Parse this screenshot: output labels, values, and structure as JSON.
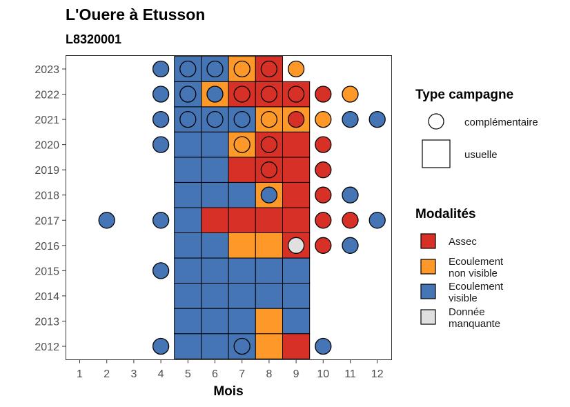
{
  "chart_data": {
    "type": "heatmap",
    "title": "L'Ouere à Etusson",
    "subtitle": "L8320001",
    "xlabel": "Mois",
    "ylabel": "",
    "x_ticks": [
      "1",
      "2",
      "3",
      "4",
      "5",
      "6",
      "7",
      "8",
      "9",
      "10",
      "11",
      "12"
    ],
    "y_ticks": [
      "2012",
      "2013",
      "2014",
      "2015",
      "2016",
      "2017",
      "2018",
      "2019",
      "2020",
      "2021",
      "2022",
      "2023"
    ],
    "colors": {
      "Assec": "#d73027",
      "Ecoulement non visible": "#fe9929",
      "Ecoulement visible": "#4575b4",
      "Donnée manquante": "#e0e0e0"
    },
    "legend_type": {
      "title": "Type campagne",
      "items": [
        {
          "label": "complémentaire",
          "shape": "circle"
        },
        {
          "label": "usuelle",
          "shape": "square"
        }
      ]
    },
    "legend_modalites": {
      "title": "Modalités",
      "items": [
        {
          "key": "Assec",
          "lines": [
            "Assec"
          ]
        },
        {
          "key": "Ecoulement non visible",
          "lines": [
            "Ecoulement",
            "non visible"
          ]
        },
        {
          "key": "Ecoulement visible",
          "lines": [
            "Ecoulement",
            "visible"
          ]
        },
        {
          "key": "Donnée manquante",
          "lines": [
            "Donnée",
            "manquante"
          ]
        }
      ]
    },
    "usuelle": [
      {
        "year": 2012,
        "month": 5,
        "value": "Ecoulement visible"
      },
      {
        "year": 2012,
        "month": 6,
        "value": "Ecoulement visible"
      },
      {
        "year": 2012,
        "month": 7,
        "value": "Ecoulement visible"
      },
      {
        "year": 2012,
        "month": 8,
        "value": "Ecoulement non visible"
      },
      {
        "year": 2012,
        "month": 9,
        "value": "Assec"
      },
      {
        "year": 2013,
        "month": 5,
        "value": "Ecoulement visible"
      },
      {
        "year": 2013,
        "month": 6,
        "value": "Ecoulement visible"
      },
      {
        "year": 2013,
        "month": 7,
        "value": "Ecoulement visible"
      },
      {
        "year": 2013,
        "month": 8,
        "value": "Ecoulement non visible"
      },
      {
        "year": 2013,
        "month": 9,
        "value": "Ecoulement visible"
      },
      {
        "year": 2014,
        "month": 5,
        "value": "Ecoulement visible"
      },
      {
        "year": 2014,
        "month": 6,
        "value": "Ecoulement visible"
      },
      {
        "year": 2014,
        "month": 7,
        "value": "Ecoulement visible"
      },
      {
        "year": 2014,
        "month": 8,
        "value": "Ecoulement visible"
      },
      {
        "year": 2014,
        "month": 9,
        "value": "Ecoulement visible"
      },
      {
        "year": 2015,
        "month": 5,
        "value": "Ecoulement visible"
      },
      {
        "year": 2015,
        "month": 6,
        "value": "Ecoulement visible"
      },
      {
        "year": 2015,
        "month": 7,
        "value": "Ecoulement visible"
      },
      {
        "year": 2015,
        "month": 8,
        "value": "Ecoulement visible"
      },
      {
        "year": 2015,
        "month": 9,
        "value": "Ecoulement visible"
      },
      {
        "year": 2016,
        "month": 5,
        "value": "Ecoulement visible"
      },
      {
        "year": 2016,
        "month": 6,
        "value": "Ecoulement visible"
      },
      {
        "year": 2016,
        "month": 7,
        "value": "Ecoulement non visible"
      },
      {
        "year": 2016,
        "month": 8,
        "value": "Ecoulement non visible"
      },
      {
        "year": 2016,
        "month": 9,
        "value": "Assec"
      },
      {
        "year": 2017,
        "month": 5,
        "value": "Ecoulement visible"
      },
      {
        "year": 2017,
        "month": 6,
        "value": "Assec"
      },
      {
        "year": 2017,
        "month": 7,
        "value": "Assec"
      },
      {
        "year": 2017,
        "month": 8,
        "value": "Assec"
      },
      {
        "year": 2017,
        "month": 9,
        "value": "Assec"
      },
      {
        "year": 2018,
        "month": 5,
        "value": "Ecoulement visible"
      },
      {
        "year": 2018,
        "month": 6,
        "value": "Ecoulement visible"
      },
      {
        "year": 2018,
        "month": 7,
        "value": "Ecoulement visible"
      },
      {
        "year": 2018,
        "month": 8,
        "value": "Ecoulement non visible"
      },
      {
        "year": 2018,
        "month": 9,
        "value": "Assec"
      },
      {
        "year": 2019,
        "month": 5,
        "value": "Ecoulement visible"
      },
      {
        "year": 2019,
        "month": 6,
        "value": "Ecoulement visible"
      },
      {
        "year": 2019,
        "month": 7,
        "value": "Assec"
      },
      {
        "year": 2019,
        "month": 8,
        "value": "Assec"
      },
      {
        "year": 2019,
        "month": 9,
        "value": "Assec"
      },
      {
        "year": 2020,
        "month": 5,
        "value": "Ecoulement visible"
      },
      {
        "year": 2020,
        "month": 6,
        "value": "Ecoulement visible"
      },
      {
        "year": 2020,
        "month": 7,
        "value": "Ecoulement non visible"
      },
      {
        "year": 2020,
        "month": 8,
        "value": "Assec"
      },
      {
        "year": 2020,
        "month": 9,
        "value": "Assec"
      },
      {
        "year": 2021,
        "month": 5,
        "value": "Ecoulement visible"
      },
      {
        "year": 2021,
        "month": 6,
        "value": "Ecoulement visible"
      },
      {
        "year": 2021,
        "month": 7,
        "value": "Ecoulement visible"
      },
      {
        "year": 2021,
        "month": 8,
        "value": "Ecoulement non visible"
      },
      {
        "year": 2021,
        "month": 9,
        "value": "Ecoulement non visible"
      },
      {
        "year": 2022,
        "month": 5,
        "value": "Ecoulement visible"
      },
      {
        "year": 2022,
        "month": 6,
        "value": "Ecoulement non visible"
      },
      {
        "year": 2022,
        "month": 7,
        "value": "Assec"
      },
      {
        "year": 2022,
        "month": 8,
        "value": "Assec"
      },
      {
        "year": 2022,
        "month": 9,
        "value": "Assec"
      },
      {
        "year": 2023,
        "month": 5,
        "value": "Ecoulement visible"
      },
      {
        "year": 2023,
        "month": 6,
        "value": "Ecoulement visible"
      },
      {
        "year": 2023,
        "month": 7,
        "value": "Ecoulement non visible"
      },
      {
        "year": 2023,
        "month": 8,
        "value": "Assec"
      }
    ],
    "complementaire": [
      {
        "year": 2012,
        "month": 4,
        "value": "Ecoulement visible"
      },
      {
        "year": 2012,
        "month": 7,
        "value": "Ecoulement visible"
      },
      {
        "year": 2012,
        "month": 10,
        "value": "Ecoulement visible"
      },
      {
        "year": 2015,
        "month": 4,
        "value": "Ecoulement visible"
      },
      {
        "year": 2016,
        "month": 9,
        "value": "Donnée manquante"
      },
      {
        "year": 2016,
        "month": 10,
        "value": "Assec"
      },
      {
        "year": 2016,
        "month": 11,
        "value": "Ecoulement visible"
      },
      {
        "year": 2017,
        "month": 2,
        "value": "Ecoulement visible"
      },
      {
        "year": 2017,
        "month": 4,
        "value": "Ecoulement visible"
      },
      {
        "year": 2017,
        "month": 10,
        "value": "Assec"
      },
      {
        "year": 2017,
        "month": 11,
        "value": "Assec"
      },
      {
        "year": 2017,
        "month": 12,
        "value": "Ecoulement visible"
      },
      {
        "year": 2018,
        "month": 8,
        "value": "Ecoulement visible"
      },
      {
        "year": 2018,
        "month": 10,
        "value": "Assec"
      },
      {
        "year": 2018,
        "month": 11,
        "value": "Ecoulement visible"
      },
      {
        "year": 2019,
        "month": 8,
        "value": "Assec"
      },
      {
        "year": 2019,
        "month": 10,
        "value": "Assec"
      },
      {
        "year": 2020,
        "month": 4,
        "value": "Ecoulement visible"
      },
      {
        "year": 2020,
        "month": 7,
        "value": "Ecoulement non visible"
      },
      {
        "year": 2020,
        "month": 8,
        "value": "Assec"
      },
      {
        "year": 2020,
        "month": 10,
        "value": "Assec"
      },
      {
        "year": 2021,
        "month": 4,
        "value": "Ecoulement visible"
      },
      {
        "year": 2021,
        "month": 5,
        "value": "Ecoulement visible"
      },
      {
        "year": 2021,
        "month": 6,
        "value": "Ecoulement visible"
      },
      {
        "year": 2021,
        "month": 7,
        "value": "Ecoulement visible"
      },
      {
        "year": 2021,
        "month": 8,
        "value": "Ecoulement non visible"
      },
      {
        "year": 2021,
        "month": 9,
        "value": "Assec"
      },
      {
        "year": 2021,
        "month": 10,
        "value": "Ecoulement non visible"
      },
      {
        "year": 2021,
        "month": 11,
        "value": "Ecoulement visible"
      },
      {
        "year": 2021,
        "month": 12,
        "value": "Ecoulement visible"
      },
      {
        "year": 2022,
        "month": 4,
        "value": "Ecoulement visible"
      },
      {
        "year": 2022,
        "month": 5,
        "value": "Ecoulement visible"
      },
      {
        "year": 2022,
        "month": 6,
        "value": "Ecoulement visible"
      },
      {
        "year": 2022,
        "month": 7,
        "value": "Assec"
      },
      {
        "year": 2022,
        "month": 8,
        "value": "Assec"
      },
      {
        "year": 2022,
        "month": 9,
        "value": "Assec"
      },
      {
        "year": 2022,
        "month": 10,
        "value": "Assec"
      },
      {
        "year": 2022,
        "month": 11,
        "value": "Ecoulement non visible"
      },
      {
        "year": 2023,
        "month": 4,
        "value": "Ecoulement visible"
      },
      {
        "year": 2023,
        "month": 5,
        "value": "Ecoulement visible"
      },
      {
        "year": 2023,
        "month": 6,
        "value": "Ecoulement visible"
      },
      {
        "year": 2023,
        "month": 7,
        "value": "Ecoulement non visible"
      },
      {
        "year": 2023,
        "month": 8,
        "value": "Assec"
      },
      {
        "year": 2023,
        "month": 9,
        "value": "Ecoulement non visible"
      }
    ]
  }
}
